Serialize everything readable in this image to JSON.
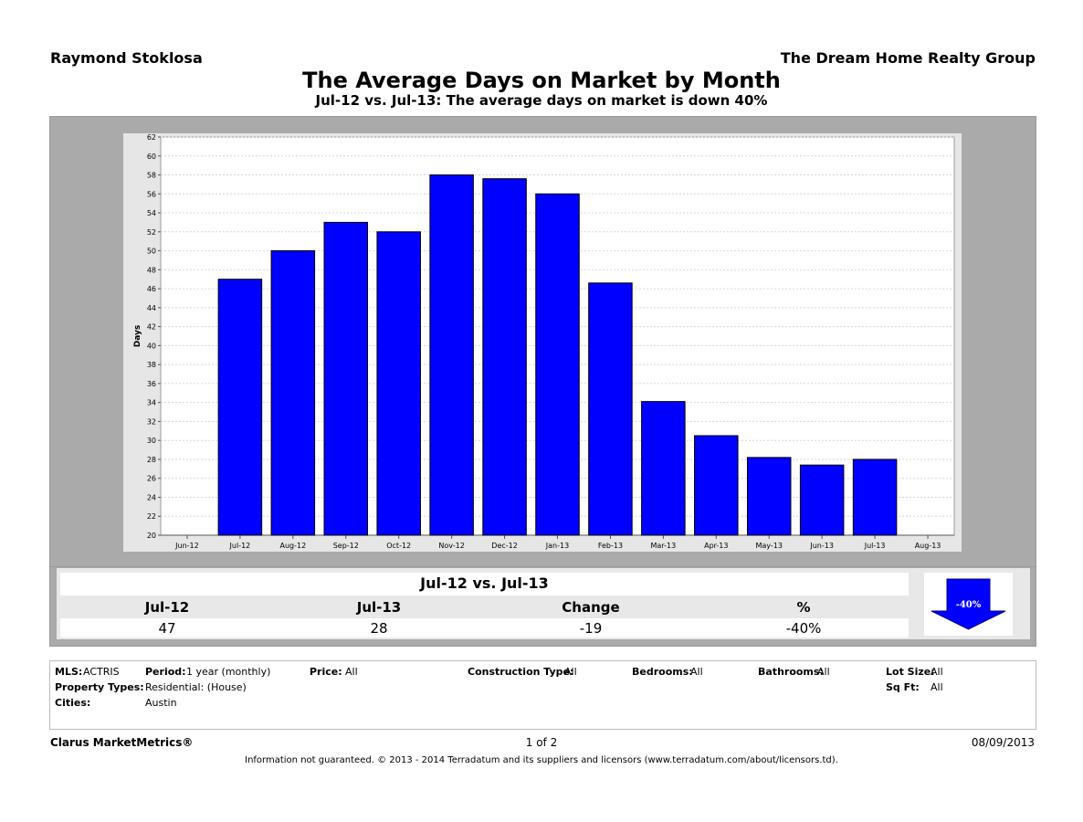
{
  "header": {
    "agent": "Raymond Stoklosa",
    "company": "The Dream Home Realty Group",
    "title": "The Average Days on Market by Month",
    "subtitle": "Jul-12 vs. Jul-13:  The average days on market is down 40%"
  },
  "chart_data": {
    "type": "bar",
    "categories": [
      "Jun-12",
      "Jul-12",
      "Aug-12",
      "Sep-12",
      "Oct-12",
      "Nov-12",
      "Dec-12",
      "Jan-13",
      "Feb-13",
      "Mar-13",
      "Apr-13",
      "May-13",
      "Jun-13",
      "Jul-13",
      "Aug-13"
    ],
    "values": [
      null,
      47,
      50,
      53,
      52,
      58,
      57.6,
      56,
      46.6,
      34.1,
      30.5,
      28.2,
      27.4,
      28,
      null
    ],
    "title": "",
    "xlabel": "",
    "ylabel": "Days",
    "ylim": [
      20,
      62
    ],
    "yticks": [
      20,
      22,
      24,
      26,
      28,
      30,
      32,
      34,
      36,
      38,
      40,
      42,
      44,
      46,
      48,
      50,
      52,
      54,
      56,
      58,
      60,
      62
    ],
    "grid": true,
    "bar_color": "#0000ff"
  },
  "summary": {
    "title": "Jul-12 vs. Jul-13",
    "headers": [
      "Jul-12",
      "Jul-13",
      "Change",
      "%"
    ],
    "values": [
      "47",
      "28",
      "-19",
      "-40%"
    ],
    "arrow_label": "-40%",
    "arrow_color": "#0000ff"
  },
  "criteria": {
    "mls_label": "MLS:",
    "mls_value": "ACTRIS",
    "period_label": "Period:",
    "period_value": "1 year (monthly)",
    "price_label": "Price:",
    "price_value": "All",
    "construction_label": "Construction Type:",
    "construction_value": "All",
    "bedrooms_label": "Bedrooms:",
    "bedrooms_value": "All",
    "bathrooms_label": "Bathrooms:",
    "bathrooms_value": "All",
    "lot_label": "Lot Size:",
    "lot_value": "All",
    "property_label": "Property Types:",
    "property_value": "Residential: (House)",
    "sqft_label": "Sq Ft:",
    "sqft_value": "All",
    "cities_label": "Cities:",
    "cities_value": "Austin"
  },
  "footer": {
    "brand": "Clarus MarketMetrics®",
    "page": "1 of 2",
    "date": "08/09/2013",
    "disclaimer": "Information not guaranteed.  © 2013 - 2014 Terradatum and its suppliers and licensors (www.terradatum.com/about/licensors.td)."
  }
}
